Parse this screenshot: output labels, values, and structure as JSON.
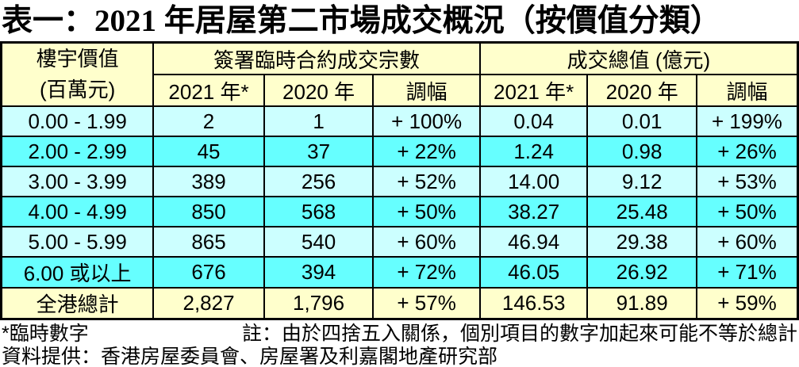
{
  "title": "表一：2021 年居屋第二市場成交概況（按價值分類）",
  "table": {
    "property_value_header": {
      "line1": "樓宇價值",
      "line2": "(百萬元)"
    },
    "group_headers": {
      "transactions": "簽署臨時合約成交宗數",
      "total_value": "成交總值 (億元)"
    },
    "sub_headers": [
      "2021 年*",
      "2020 年",
      "調幅"
    ],
    "rows": [
      {
        "label": "0.00 - 1.99",
        "cells": [
          "2",
          "1",
          "+ 100%",
          "0.04",
          "0.01",
          "+ 199%"
        ]
      },
      {
        "label": "2.00 - 2.99",
        "cells": [
          "45",
          "37",
          "+ 22%",
          "1.24",
          "0.98",
          "+ 26%"
        ]
      },
      {
        "label": "3.00 - 3.99",
        "cells": [
          "389",
          "256",
          "+ 52%",
          "14.00",
          "9.12",
          "+ 53%"
        ]
      },
      {
        "label": "4.00 - 4.99",
        "cells": [
          "850",
          "568",
          "+ 50%",
          "38.27",
          "25.48",
          "+ 50%"
        ]
      },
      {
        "label": "5.00 - 5.99",
        "cells": [
          "865",
          "540",
          "+ 60%",
          "46.94",
          "29.38",
          "+ 60%"
        ]
      },
      {
        "label": "6.00 或以上",
        "cells": [
          "676",
          "394",
          "+ 72%",
          "46.05",
          "26.92",
          "+ 71%"
        ]
      }
    ],
    "total_row": {
      "label": "全港總計",
      "cells": [
        "2,827",
        "1,796",
        "+ 57%",
        "146.53",
        "91.89",
        "+ 59%"
      ]
    }
  },
  "footnotes": {
    "provisional": "*臨時數字",
    "rounding_note": "註：由於四捨五入關係，個別項目的數字加起來可能不等於總計",
    "source": "資料提供：香港房屋委員會、房屋署及利嘉閣地產研究部"
  },
  "colors": {
    "header_bg": "#FFFFCC",
    "row_light_bg": "#CCFFFF",
    "row_bright_bg": "#66FFFF",
    "total_bg": "#FFFFCC",
    "border": "#000000",
    "text": "#000000"
  },
  "chart_data": {
    "type": "table",
    "title": "表一：2021 年居屋第二市場成交概況（按價值分類）",
    "column_groups": [
      "簽署臨時合約成交宗數",
      "成交總值 (億元)"
    ],
    "columns": [
      "樓宇價值 (百萬元)",
      "宗數 2021 年*",
      "宗數 2020 年",
      "宗數 調幅 (%)",
      "總值 2021 年* (億元)",
      "總值 2020 年 (億元)",
      "總值 調幅 (%)"
    ],
    "rows": [
      {
        "value_band": "0.00 - 1.99",
        "deals_2021": 2,
        "deals_2020": 1,
        "deals_change_pct": 100,
        "value_2021": 0.04,
        "value_2020": 0.01,
        "value_change_pct": 199
      },
      {
        "value_band": "2.00 - 2.99",
        "deals_2021": 45,
        "deals_2020": 37,
        "deals_change_pct": 22,
        "value_2021": 1.24,
        "value_2020": 0.98,
        "value_change_pct": 26
      },
      {
        "value_band": "3.00 - 3.99",
        "deals_2021": 389,
        "deals_2020": 256,
        "deals_change_pct": 52,
        "value_2021": 14.0,
        "value_2020": 9.12,
        "value_change_pct": 53
      },
      {
        "value_band": "4.00 - 4.99",
        "deals_2021": 850,
        "deals_2020": 568,
        "deals_change_pct": 50,
        "value_2021": 38.27,
        "value_2020": 25.48,
        "value_change_pct": 50
      },
      {
        "value_band": "5.00 - 5.99",
        "deals_2021": 865,
        "deals_2020": 540,
        "deals_change_pct": 60,
        "value_2021": 46.94,
        "value_2020": 29.38,
        "value_change_pct": 60
      },
      {
        "value_band": "6.00 或以上",
        "deals_2021": 676,
        "deals_2020": 394,
        "deals_change_pct": 72,
        "value_2021": 46.05,
        "value_2020": 26.92,
        "value_change_pct": 71
      },
      {
        "value_band": "全港總計",
        "deals_2021": 2827,
        "deals_2020": 1796,
        "deals_change_pct": 57,
        "value_2021": 146.53,
        "value_2020": 91.89,
        "value_change_pct": 59
      }
    ]
  }
}
